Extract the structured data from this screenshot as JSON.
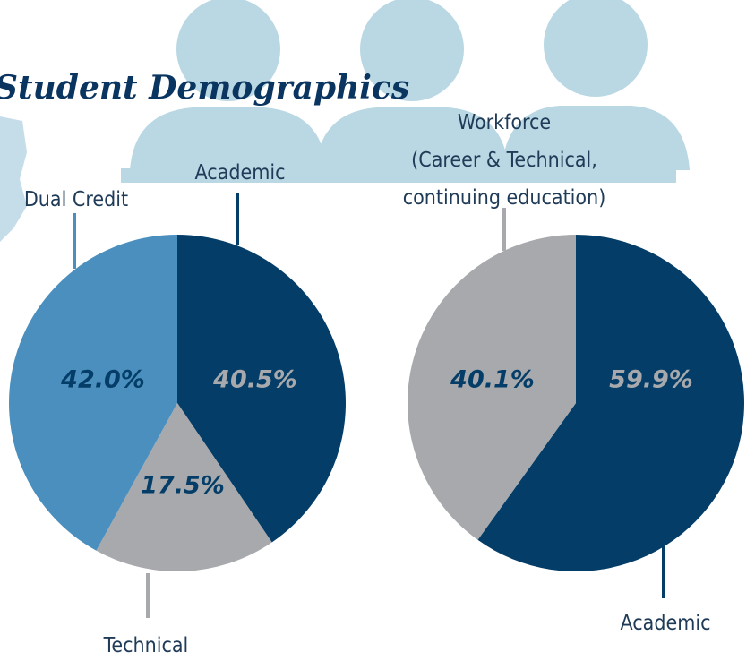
{
  "title": "Student Demographics",
  "chart_data": [
    {
      "type": "pie",
      "categories": [
        "Academic",
        "Technical",
        "Dual Credit"
      ],
      "values": [
        40.5,
        17.5,
        42.0
      ],
      "value_labels": [
        "40.5%",
        "17.5%",
        "42.0%"
      ],
      "colors": [
        "#033d68",
        "#a7a9ac",
        "#4b8fbe"
      ],
      "label_colors": [
        "#a7a9ac",
        "#033d68",
        "#033d68"
      ]
    },
    {
      "type": "pie",
      "categories": [
        "Academic",
        "Workforce\n(Career & Technical,\ncontinuing education)"
      ],
      "values": [
        59.9,
        40.1
      ],
      "value_labels": [
        "59.9%",
        "40.1%"
      ],
      "colors": [
        "#033d68",
        "#a7a9ac"
      ],
      "label_colors": [
        "#a7a9ac",
        "#033d68"
      ]
    }
  ]
}
